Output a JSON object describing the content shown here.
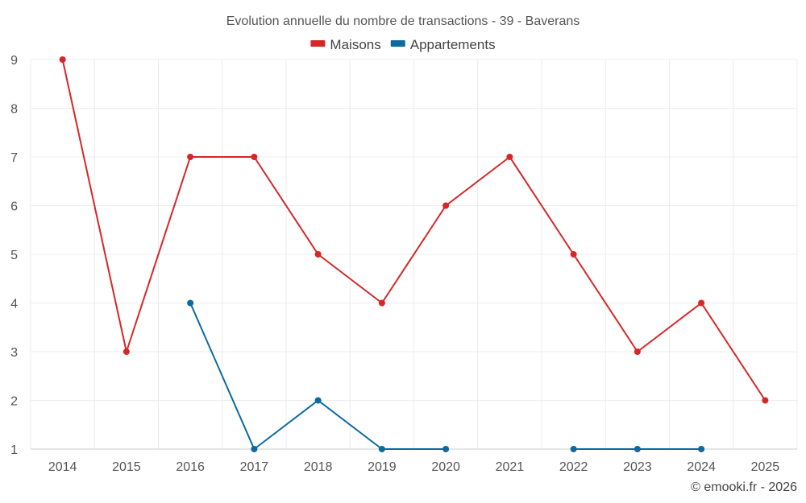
{
  "chart_data": {
    "type": "line",
    "title": "Evolution annuelle du nombre de transactions - 39 - Baverans",
    "categories": [
      "2014",
      "2015",
      "2016",
      "2017",
      "2018",
      "2019",
      "2020",
      "2021",
      "2022",
      "2023",
      "2024",
      "2025"
    ],
    "ylim": [
      1,
      9
    ],
    "yticks": [
      1,
      2,
      3,
      4,
      5,
      6,
      7,
      8,
      9
    ],
    "grid": true,
    "legend_position": "top-center",
    "series": [
      {
        "name": "Maisons",
        "color": "#d62728",
        "values": [
          9,
          3,
          7,
          7,
          5,
          4,
          6,
          7,
          5,
          3,
          4,
          2
        ]
      },
      {
        "name": "Appartements",
        "color": "#0a6aa1",
        "values": [
          null,
          null,
          4,
          1,
          2,
          1,
          1,
          null,
          1,
          1,
          1,
          null
        ]
      }
    ],
    "xlabel": "",
    "ylabel": ""
  },
  "credit": "© emooki.fr - 2026"
}
